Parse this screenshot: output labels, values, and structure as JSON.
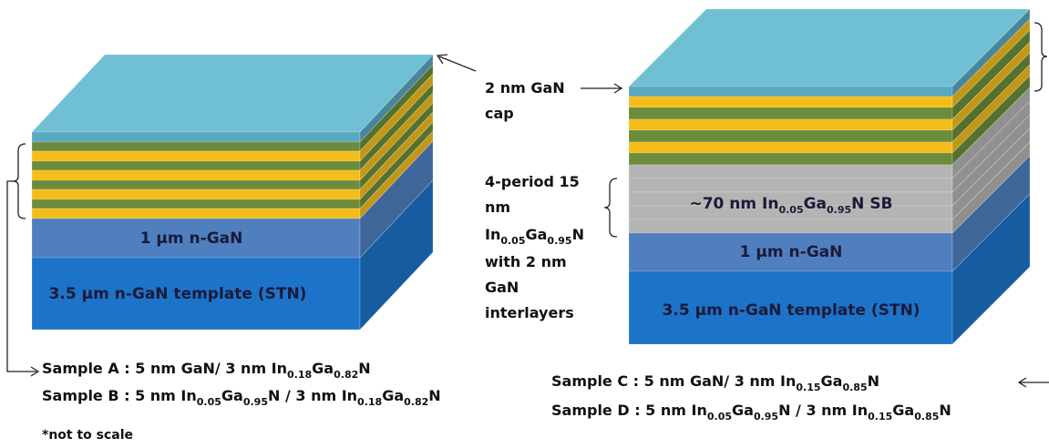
{
  "left_stack": {
    "layers": [
      "1 µm n-GaN",
      "3.5 µm n-GaN template (STN)"
    ]
  },
  "right_stack": {
    "sb_layer": [
      "~70 nm In",
      "0.05",
      "Ga",
      "0.95",
      "N SB"
    ],
    "layers": [
      "1 µm n-GaN",
      "3.5 µm n-GaN template (STN)"
    ]
  },
  "cap_note": [
    "2 nm GaN",
    "cap"
  ],
  "sb_note": {
    "lines_top": [
      "4-period 15",
      "nm"
    ],
    "formula": [
      "In",
      "0.05",
      "Ga",
      "0.95",
      "N"
    ],
    "lines_bottom": [
      "with 2 nm",
      "GaN",
      "interlayers"
    ]
  },
  "samples_left": [
    {
      "label": "Sample A",
      "parts": [
        " : 5 nm GaN/ 3 nm In",
        "0.18",
        "Ga",
        "0.82",
        "N"
      ]
    },
    {
      "label": "Sample B",
      "parts": [
        " : 5 nm In",
        "0.05",
        "Ga",
        "0.95",
        "N / 3 nm In",
        "0.18",
        "Ga",
        "0.82",
        "N"
      ]
    }
  ],
  "samples_right": [
    {
      "label": "Sample C",
      "parts": [
        " : 5 nm GaN/ 3 nm In",
        "0.15",
        "Ga",
        "0.85",
        "N"
      ]
    },
    {
      "label": "Sample D",
      "parts": [
        " : 5 nm In",
        "0.05",
        "Ga",
        "0.95",
        "N / 3 nm In",
        "0.15",
        "Ga",
        "0.85",
        "N"
      ]
    }
  ],
  "footnote": "*not to scale"
}
